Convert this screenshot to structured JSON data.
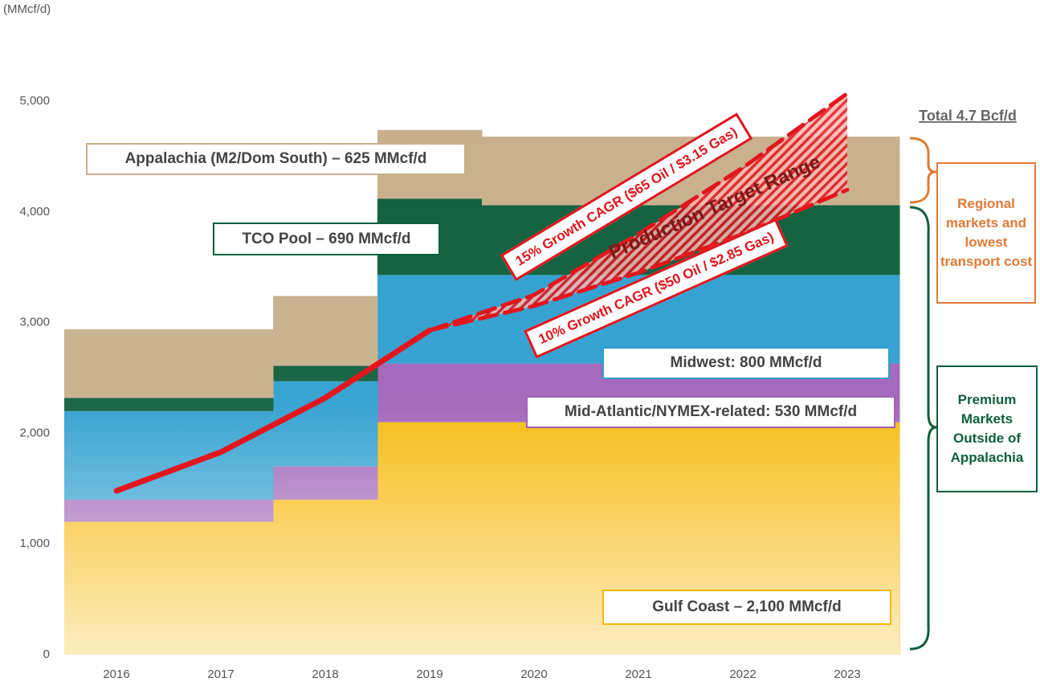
{
  "chart_data": {
    "type": "bar",
    "stacked": true,
    "y_unit_label": "(MMcf/d)",
    "categories": [
      "2016",
      "2017",
      "2018",
      "2019",
      "2020",
      "2021",
      "2022",
      "2023"
    ],
    "series": [
      {
        "name": "Gulf Coast – 2,100 MMcf/d",
        "color": "#f6b90a",
        "border": "#f6b90a",
        "values": [
          1200,
          1200,
          1400,
          2100,
          2100,
          2100,
          2100,
          2100
        ]
      },
      {
        "name": "Mid-Atlantic/NYMEX-related: 530 MMcf/d",
        "color": "#a063b8",
        "border": "#a063b8",
        "values": [
          200,
          200,
          300,
          530,
          530,
          530,
          530,
          530
        ]
      },
      {
        "name": "Midwest: 800 MMcf/d",
        "color": "#2f9fd0",
        "border": "#2f9fd0",
        "values": [
          800,
          800,
          770,
          800,
          800,
          800,
          800,
          800
        ]
      },
      {
        "name": "TCO Pool – 690 MMcf/d",
        "color": "#0f5f3c",
        "border": "#0f5f3c",
        "values": [
          120,
          120,
          140,
          690,
          630,
          630,
          630,
          630
        ]
      },
      {
        "name": "Appalachia (M2/Dom South) – 625 MMcf/d",
        "color": "#c8b08c",
        "border": "#c8b08c",
        "values": [
          620,
          620,
          630,
          620,
          620,
          620,
          620,
          620
        ]
      }
    ],
    "lines": [
      {
        "color": "#e3161d",
        "dashed": false,
        "values": [
          1480,
          1830,
          2320,
          2930,
          null,
          null,
          null,
          null
        ]
      },
      {
        "name": "15% Growth CAGR ($65 Oil / $3.15 Gas)",
        "color": "#e3161d",
        "dashed": true,
        "values": [
          null,
          null,
          null,
          2930,
          3250,
          3800,
          4400,
          5070
        ]
      },
      {
        "name": "10% Growth CAGR ($50 Oil / $2.85 Gas)",
        "color": "#e3161d",
        "dashed": true,
        "values": [
          null,
          null,
          null,
          2930,
          3150,
          3450,
          3800,
          4200
        ]
      }
    ],
    "range_label": "Production Target Range",
    "ylim": [
      0,
      5000
    ],
    "yticks": [
      0,
      {
        "value": 1000,
        "label": "1,000"
      },
      {
        "value": 2000,
        "label": "2,000"
      },
      {
        "value": 3000,
        "label": "3,000"
      },
      {
        "value": 4000,
        "label": "4,000"
      },
      {
        "value": 5000,
        "label": "5,000"
      }
    ],
    "grid": false,
    "total_label": "Total 4.7 Bcf/d",
    "regional_label": "Regional markets and lowest transport cost",
    "premium_label": "Premium Markets Outside of Appalachia"
  }
}
